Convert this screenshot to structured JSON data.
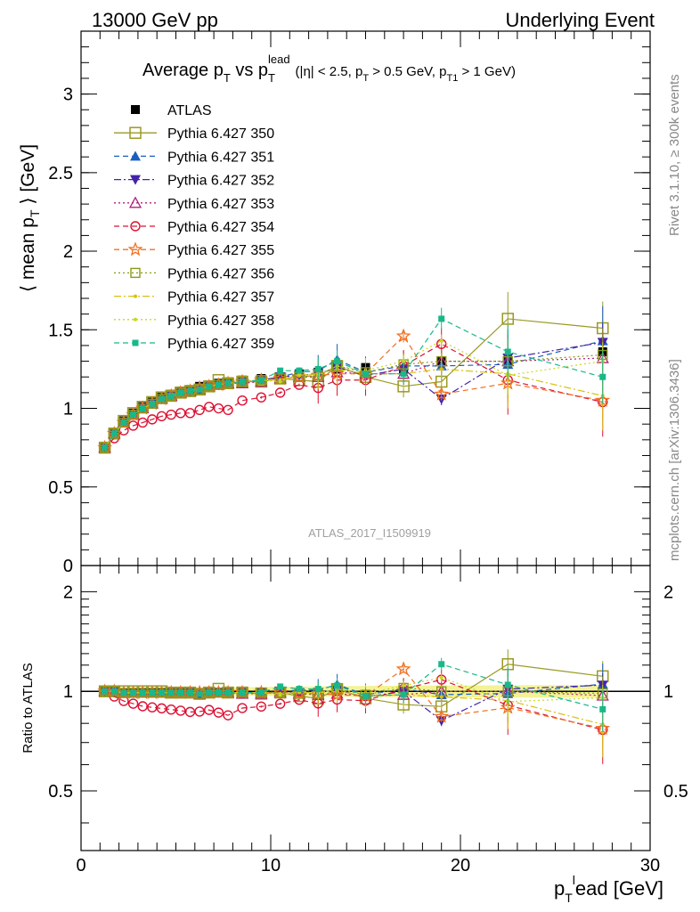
{
  "header": {
    "left": "13000 GeV pp",
    "right": "Underlying Event"
  },
  "side_labels": {
    "rivet": "Rivet 3.1.10, ≥ 300k events",
    "mcplots": "mcplots.cern.ch [arXiv:1306.3436]"
  },
  "watermark": "ATLAS_2017_I1509919",
  "title": {
    "main": "Average p",
    "main_sub": "T",
    "vs": " vs p",
    "vs_sup": "lead",
    "vs_sub": "T",
    "cuts": "(|η| < 2.5, p",
    "cuts_sub1": "T",
    "cuts_mid": " > 0.5 GeV, p",
    "cuts_sub2": "T1",
    "cuts_end": " > 1 GeV)"
  },
  "axes": {
    "ylabel_main": "⟨ mean p",
    "ylabel_sub": "T",
    "ylabel_end": " ⟩ [GeV]",
    "ylabel_ratio": "Ratio to ATLAS",
    "xlabel_p": "p",
    "xlabel_sub": "T",
    "xlabel_sup": "l",
    "xlabel_end": "ead [GeV]"
  },
  "colors": {
    "ATLAS": "#000000",
    "Pythia 6.427 350": "#9a9a24",
    "Pythia 6.427 351": "#1a5fbf",
    "Pythia 6.427 352": "#4422aa",
    "Pythia 6.427 353": "#b0207a",
    "Pythia 6.427 354": "#dd1133",
    "Pythia 6.427 355": "#f07020",
    "Pythia 6.427 356": "#8a9a18",
    "Pythia 6.427 357": "#d8c010",
    "Pythia 6.427 358": "#c8d820",
    "Pythia 6.427 359": "#18b88a"
  },
  "chart_data": [
    {
      "type": "scatter",
      "panel": "main",
      "xlim": [
        0,
        30
      ],
      "ylim": [
        0,
        3.4
      ],
      "xticks": [
        "0",
        "10",
        "20",
        "30"
      ],
      "yticks": [
        "0",
        "0.5",
        "1",
        "1.5",
        "2",
        "2.5",
        "3"
      ],
      "legend_position": "top-left",
      "x": [
        1.25,
        1.75,
        2.25,
        2.75,
        3.25,
        3.75,
        4.25,
        4.75,
        5.25,
        5.75,
        6.25,
        6.75,
        7.25,
        7.75,
        8.5,
        9.5,
        10.5,
        11.5,
        12.5,
        13.5,
        15,
        17,
        19,
        22.5,
        27.5
      ],
      "series": [
        {
          "name": "ATLAS",
          "marker": "square-filled",
          "line": "none",
          "values": [
            0.75,
            0.84,
            0.92,
            0.97,
            1.01,
            1.04,
            1.07,
            1.09,
            1.11,
            1.12,
            1.14,
            1.15,
            1.16,
            1.17,
            1.18,
            1.19,
            1.2,
            1.22,
            1.23,
            1.25,
            1.26,
            1.25,
            1.3,
            1.3,
            1.36
          ]
        },
        {
          "name": "Pythia 6.427 350",
          "marker": "square-open",
          "line": "solid",
          "values": [
            0.75,
            0.84,
            0.92,
            0.97,
            1.01,
            1.04,
            1.07,
            1.08,
            1.1,
            1.11,
            1.12,
            1.14,
            1.18,
            1.16,
            1.17,
            1.17,
            1.19,
            1.18,
            1.17,
            1.27,
            1.2,
            1.14,
            1.17,
            1.57,
            1.51
          ]
        },
        {
          "name": "Pythia 6.427 351",
          "marker": "triangle-up-filled",
          "line": "dashed",
          "values": [
            0.75,
            0.84,
            0.91,
            0.96,
            1.0,
            1.03,
            1.06,
            1.08,
            1.1,
            1.11,
            1.12,
            1.14,
            1.15,
            1.16,
            1.17,
            1.18,
            1.2,
            1.23,
            1.24,
            1.31,
            1.23,
            1.27,
            1.27,
            1.28,
            1.43
          ]
        },
        {
          "name": "Pythia 6.427 352",
          "marker": "triangle-down-filled",
          "line": "dashdot",
          "values": [
            0.75,
            0.84,
            0.91,
            0.96,
            1.0,
            1.03,
            1.06,
            1.08,
            1.1,
            1.11,
            1.12,
            1.14,
            1.15,
            1.16,
            1.17,
            1.18,
            1.2,
            1.21,
            1.22,
            1.26,
            1.21,
            1.25,
            1.06,
            1.32,
            1.42
          ]
        },
        {
          "name": "Pythia 6.427 353",
          "marker": "triangle-up-open",
          "line": "dotted",
          "values": [
            0.75,
            0.84,
            0.91,
            0.96,
            1.0,
            1.03,
            1.06,
            1.08,
            1.1,
            1.11,
            1.12,
            1.14,
            1.15,
            1.16,
            1.16,
            1.17,
            1.19,
            1.2,
            1.2,
            1.23,
            1.22,
            1.22,
            1.3,
            1.3,
            1.32
          ]
        },
        {
          "name": "Pythia 6.427 354",
          "marker": "circle-open",
          "line": "dashed",
          "values": [
            0.75,
            0.81,
            0.86,
            0.89,
            0.91,
            0.93,
            0.95,
            0.96,
            0.97,
            0.97,
            0.99,
            1.01,
            1.0,
            0.99,
            1.05,
            1.07,
            1.1,
            1.15,
            1.13,
            1.18,
            1.18,
            1.27,
            1.41,
            1.18,
            1.04
          ]
        },
        {
          "name": "Pythia 6.427 355",
          "marker": "star-open",
          "line": "dashed",
          "values": [
            0.75,
            0.84,
            0.91,
            0.96,
            1.0,
            1.03,
            1.06,
            1.08,
            1.1,
            1.11,
            1.13,
            1.14,
            1.15,
            1.16,
            1.17,
            1.18,
            1.19,
            1.2,
            1.21,
            1.22,
            1.22,
            1.46,
            1.09,
            1.16,
            1.05
          ]
        },
        {
          "name": "Pythia 6.427 356",
          "marker": "square-open-small",
          "line": "dotted",
          "values": [
            0.75,
            0.84,
            0.91,
            0.96,
            1.0,
            1.03,
            1.06,
            1.08,
            1.1,
            1.11,
            1.12,
            1.14,
            1.15,
            1.16,
            1.17,
            1.18,
            1.19,
            1.2,
            1.21,
            1.27,
            1.23,
            1.28,
            1.3,
            1.3,
            1.34
          ]
        },
        {
          "name": "Pythia 6.427 357",
          "marker": "dot",
          "line": "dashdot",
          "values": [
            0.75,
            0.84,
            0.91,
            0.96,
            1.0,
            1.03,
            1.06,
            1.08,
            1.1,
            1.11,
            1.12,
            1.14,
            1.15,
            1.16,
            1.17,
            1.18,
            1.18,
            1.21,
            1.22,
            1.25,
            1.22,
            1.22,
            1.25,
            1.22,
            1.08
          ]
        },
        {
          "name": "Pythia 6.427 358",
          "marker": "dot",
          "line": "dotted",
          "values": [
            0.75,
            0.84,
            0.91,
            0.96,
            1.0,
            1.03,
            1.06,
            1.08,
            1.1,
            1.11,
            1.12,
            1.14,
            1.15,
            1.16,
            1.17,
            1.18,
            1.17,
            1.22,
            1.21,
            1.27,
            1.24,
            1.3,
            1.43,
            1.21,
            1.3
          ]
        },
        {
          "name": "Pythia 6.427 359",
          "marker": "square-filled-small",
          "line": "dashed",
          "values": [
            0.75,
            0.84,
            0.91,
            0.96,
            1.0,
            1.03,
            1.06,
            1.08,
            1.1,
            1.11,
            1.12,
            1.14,
            1.15,
            1.16,
            1.17,
            1.18,
            1.24,
            1.24,
            1.25,
            1.3,
            1.22,
            1.22,
            1.57,
            1.36,
            1.2
          ]
        }
      ]
    },
    {
      "type": "scatter",
      "panel": "ratio",
      "ylabel": "Ratio to ATLAS",
      "xlabel": "p_T^lead [GeV]",
      "xlim": [
        0,
        30
      ],
      "ylim": [
        0.33,
        2.4
      ],
      "yticks": [
        "0.5",
        "1",
        "2"
      ],
      "reference_band": "ATLAS uncertainty around 1",
      "note": "ratio values are each Pythia series divided by ATLAS"
    }
  ]
}
